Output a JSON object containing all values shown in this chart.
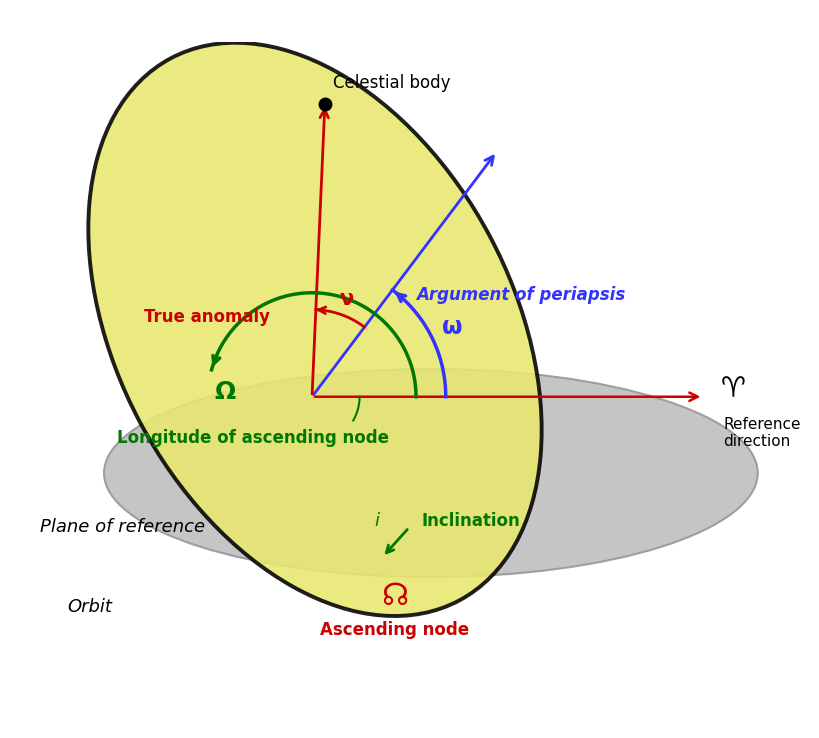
{
  "fig_width": 8.2,
  "fig_height": 7.38,
  "dpi": 100,
  "colors": {
    "orbit_fill": "#e8e870",
    "orbit_edge": "#000000",
    "ref_plane_fill": "#c0c0c0",
    "ref_plane_edge": "#999999",
    "red": "#cc0000",
    "green": "#007700",
    "blue": "#3333ff",
    "black": "#000000",
    "white": "#ffffff"
  },
  "labels": {
    "celestial_body": "Celestial body",
    "true_anomaly": "True anomaly",
    "nu": "ν",
    "omega": "ω",
    "argument_of_periapsis": "Argument of periapsis",
    "big_omega": "Ω",
    "longitude_of_ascending_node": "Longitude of ascending node",
    "plane_of_reference": "Plane of reference",
    "orbit": "Orbit",
    "inclination": "Inclination",
    "i": "i",
    "ascending_node_symbol": "☊",
    "ascending_node": "Ascending node",
    "aries": "♈",
    "reference_direction": "Reference\ndirection"
  }
}
